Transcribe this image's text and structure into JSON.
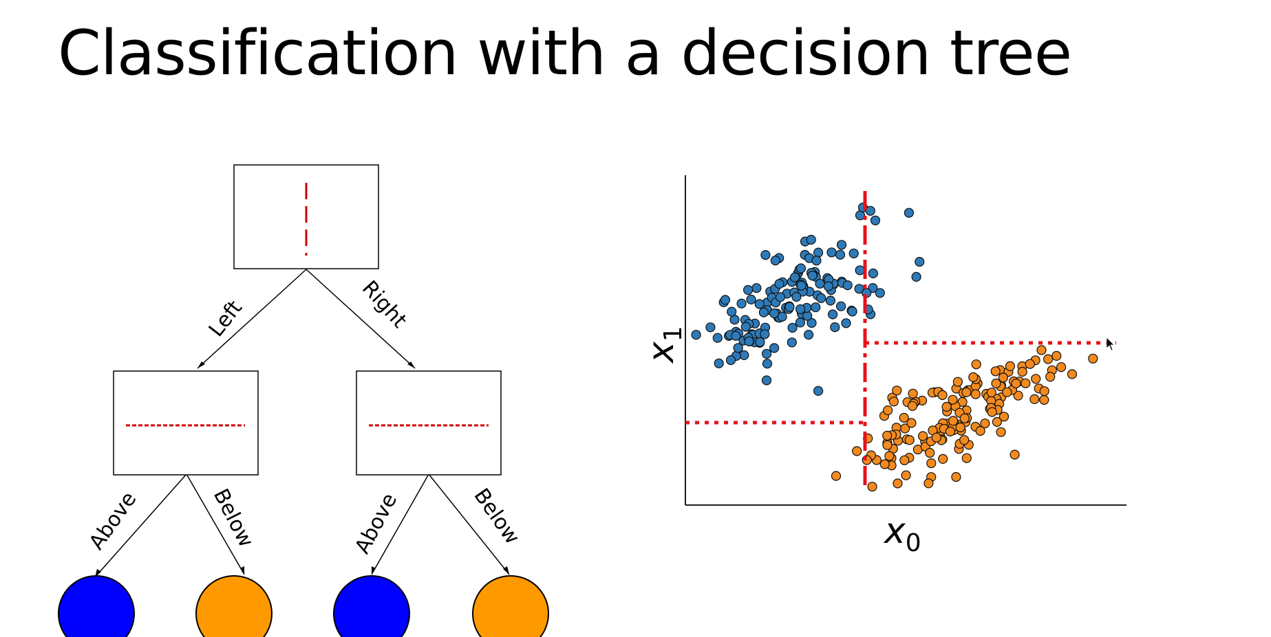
{
  "title": "Classification with a decision tree",
  "tree": {
    "edge_labels": {
      "root_left": "Left",
      "root_right": "Right",
      "left_above": "Above",
      "left_below": "Below",
      "right_above": "Above",
      "right_below": "Below"
    },
    "leaf_colors": [
      "#0000ff",
      "#ff9900",
      "#0000ff",
      "#ff9900"
    ],
    "split_color": "#d00000"
  },
  "scatter": {
    "x_label": "x",
    "x_sub": "0",
    "y_label": "x",
    "y_sub": "1",
    "colors": {
      "class_a": "#2e7ab8",
      "class_b": "#f28a1e",
      "split": "#e8121a"
    }
  }
}
